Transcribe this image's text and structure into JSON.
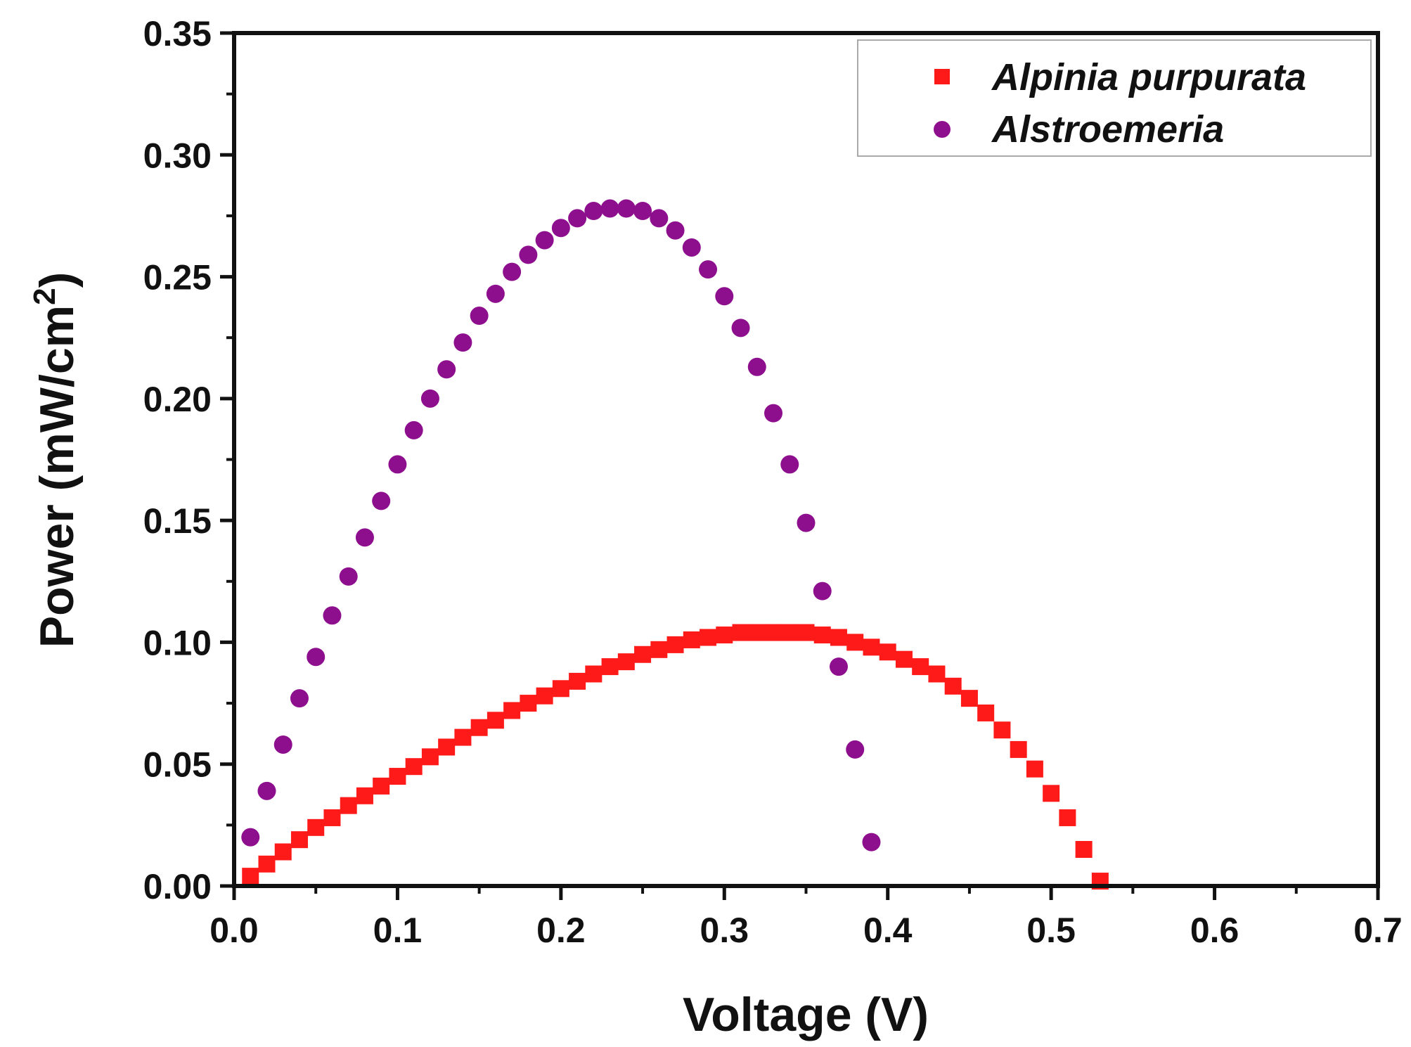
{
  "chart_data": {
    "type": "scatter",
    "title": "",
    "xlabel": "Voltage (V)",
    "ylabel": "Power (mW/cm²)",
    "ylabel_parts": {
      "pre": "Power (mW/cm",
      "sup": "2",
      "post": ")"
    },
    "xlim": [
      0.0,
      0.7
    ],
    "ylim": [
      0.0,
      0.35
    ],
    "xticks": [
      "0.0",
      "0.1",
      "0.2",
      "0.3",
      "0.4",
      "0.5",
      "0.6",
      "0.7"
    ],
    "yticks": [
      "0.00",
      "0.05",
      "0.10",
      "0.15",
      "0.20",
      "0.25",
      "0.30",
      "0.35"
    ],
    "grid": false,
    "legend_position": "top-right",
    "series": [
      {
        "name": "Alpinia purpurata",
        "marker": "square",
        "color": "#ff1a1a",
        "x": [
          0.01,
          0.02,
          0.03,
          0.04,
          0.05,
          0.06,
          0.07,
          0.08,
          0.09,
          0.1,
          0.11,
          0.12,
          0.13,
          0.14,
          0.15,
          0.16,
          0.17,
          0.18,
          0.19,
          0.2,
          0.21,
          0.22,
          0.23,
          0.24,
          0.25,
          0.26,
          0.27,
          0.28,
          0.29,
          0.3,
          0.31,
          0.32,
          0.33,
          0.34,
          0.35,
          0.36,
          0.37,
          0.38,
          0.39,
          0.4,
          0.41,
          0.42,
          0.43,
          0.44,
          0.45,
          0.46,
          0.47,
          0.48,
          0.49,
          0.5,
          0.51,
          0.52,
          0.53
        ],
        "y": [
          0.004,
          0.009,
          0.014,
          0.019,
          0.024,
          0.028,
          0.033,
          0.037,
          0.041,
          0.045,
          0.049,
          0.053,
          0.057,
          0.061,
          0.065,
          0.068,
          0.072,
          0.075,
          0.078,
          0.081,
          0.084,
          0.087,
          0.09,
          0.092,
          0.095,
          0.097,
          0.099,
          0.101,
          0.102,
          0.103,
          0.104,
          0.104,
          0.104,
          0.104,
          0.104,
          0.103,
          0.102,
          0.1,
          0.098,
          0.096,
          0.093,
          0.09,
          0.087,
          0.082,
          0.077,
          0.071,
          0.064,
          0.056,
          0.048,
          0.038,
          0.028,
          0.015,
          0.002
        ]
      },
      {
        "name": "Alstroemeria",
        "marker": "circle",
        "color": "#8e0f8e",
        "x": [
          0.01,
          0.02,
          0.03,
          0.04,
          0.05,
          0.06,
          0.07,
          0.08,
          0.09,
          0.1,
          0.11,
          0.12,
          0.13,
          0.14,
          0.15,
          0.16,
          0.17,
          0.18,
          0.19,
          0.2,
          0.21,
          0.22,
          0.23,
          0.24,
          0.25,
          0.26,
          0.27,
          0.28,
          0.29,
          0.3,
          0.31,
          0.32,
          0.33,
          0.34,
          0.35,
          0.36,
          0.37,
          0.38,
          0.39
        ],
        "y": [
          0.02,
          0.039,
          0.058,
          0.077,
          0.094,
          0.111,
          0.127,
          0.143,
          0.158,
          0.173,
          0.187,
          0.2,
          0.212,
          0.223,
          0.234,
          0.243,
          0.252,
          0.259,
          0.265,
          0.27,
          0.274,
          0.277,
          0.278,
          0.278,
          0.277,
          0.274,
          0.269,
          0.262,
          0.253,
          0.242,
          0.229,
          0.213,
          0.194,
          0.173,
          0.149,
          0.121,
          0.09,
          0.056,
          0.018
        ]
      }
    ]
  }
}
